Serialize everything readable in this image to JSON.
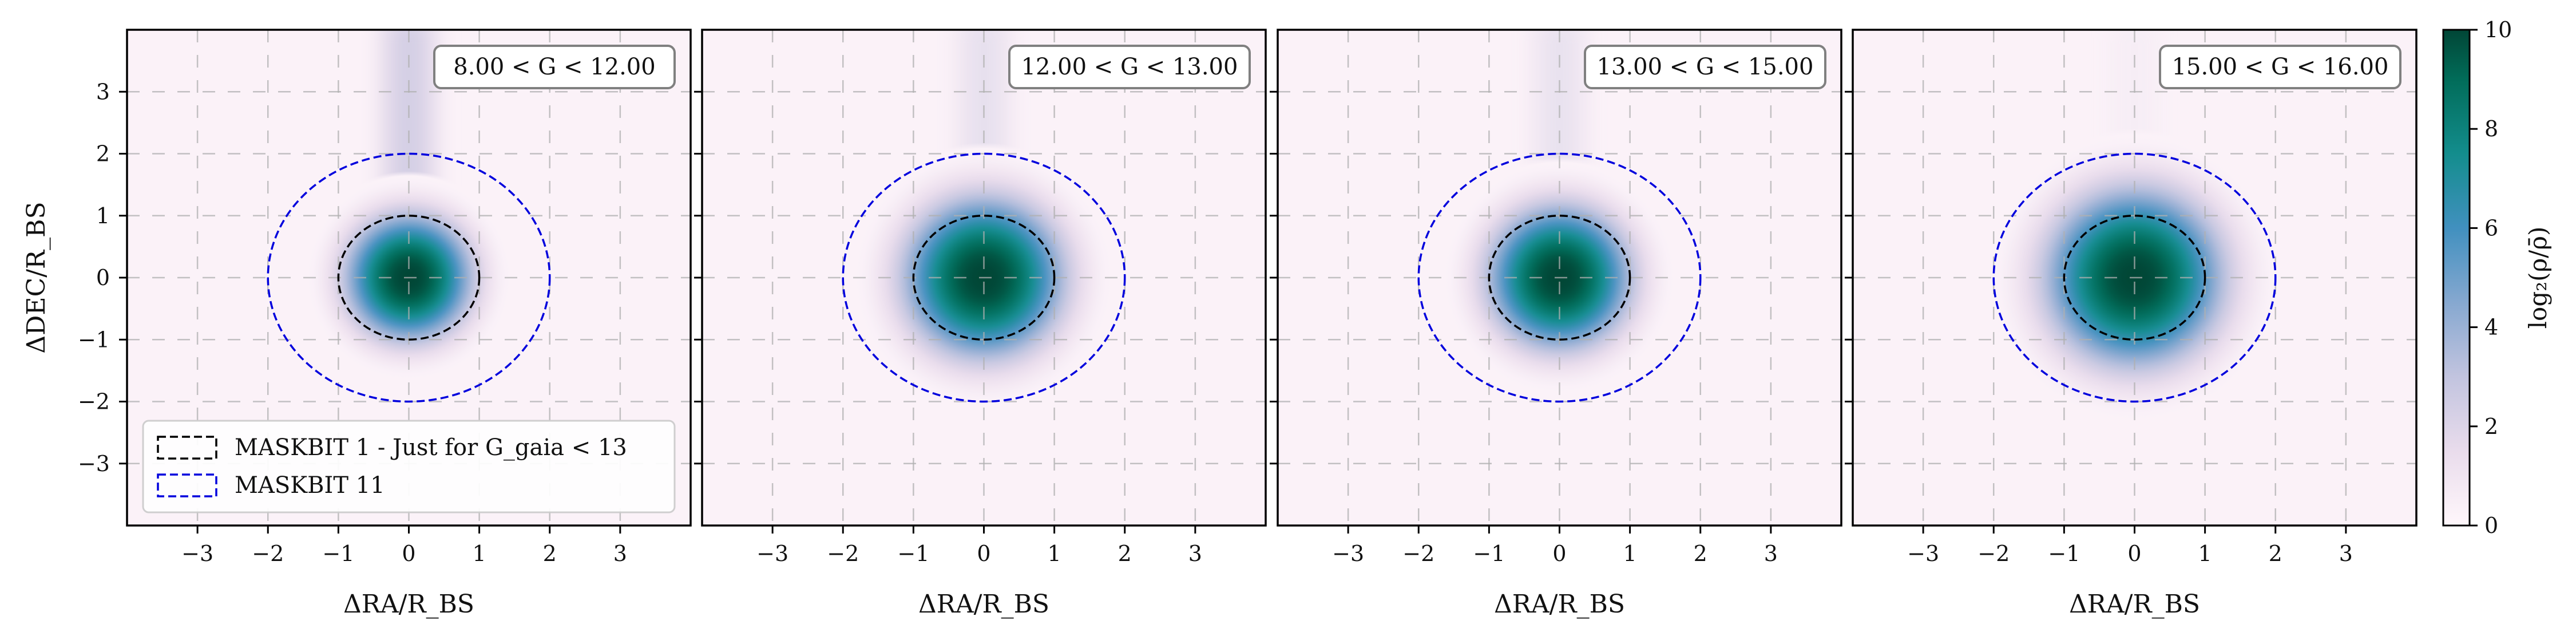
{
  "chart_data": {
    "type": "heatmap",
    "panels": [
      {
        "label": "8.00 < G < 12.00",
        "core_radius": 0.75,
        "core_peak": 10,
        "tail_strength": 1.0
      },
      {
        "label": "12.00 < G < 13.00",
        "core_radius": 0.95,
        "core_peak": 10,
        "tail_strength": 0.5
      },
      {
        "label": "13.00 < G < 15.00",
        "core_radius": 0.85,
        "core_peak": 10,
        "tail_strength": 0.45
      },
      {
        "label": "15.00 < G < 16.00",
        "core_radius": 1.05,
        "core_peak": 10,
        "tail_strength": 0.12
      }
    ],
    "xlabel": "ΔRA/R_BS",
    "ylabel": "ΔDEC/R_BS",
    "xlim": [
      -4,
      4
    ],
    "ylim": [
      -4,
      4
    ],
    "xticks": [
      -3,
      -2,
      -1,
      0,
      1,
      2,
      3
    ],
    "yticks": [
      -3,
      -2,
      -1,
      0,
      1,
      2,
      3
    ],
    "grid": true,
    "circles": [
      {
        "name": "MASKBIT 1 - Just for G_gaia < 13",
        "radius": 1,
        "color": "#000000"
      },
      {
        "name": "MASKBIT 11",
        "radius": 2,
        "color": "#0000dd"
      }
    ],
    "legend_location": "lower-left",
    "colorbar": {
      "label": "log₂(ρ/ρ̄)",
      "min": 0,
      "max": 10,
      "ticks": [
        0,
        2,
        4,
        6,
        8,
        10
      ],
      "colormap": "PuBuGn"
    }
  }
}
